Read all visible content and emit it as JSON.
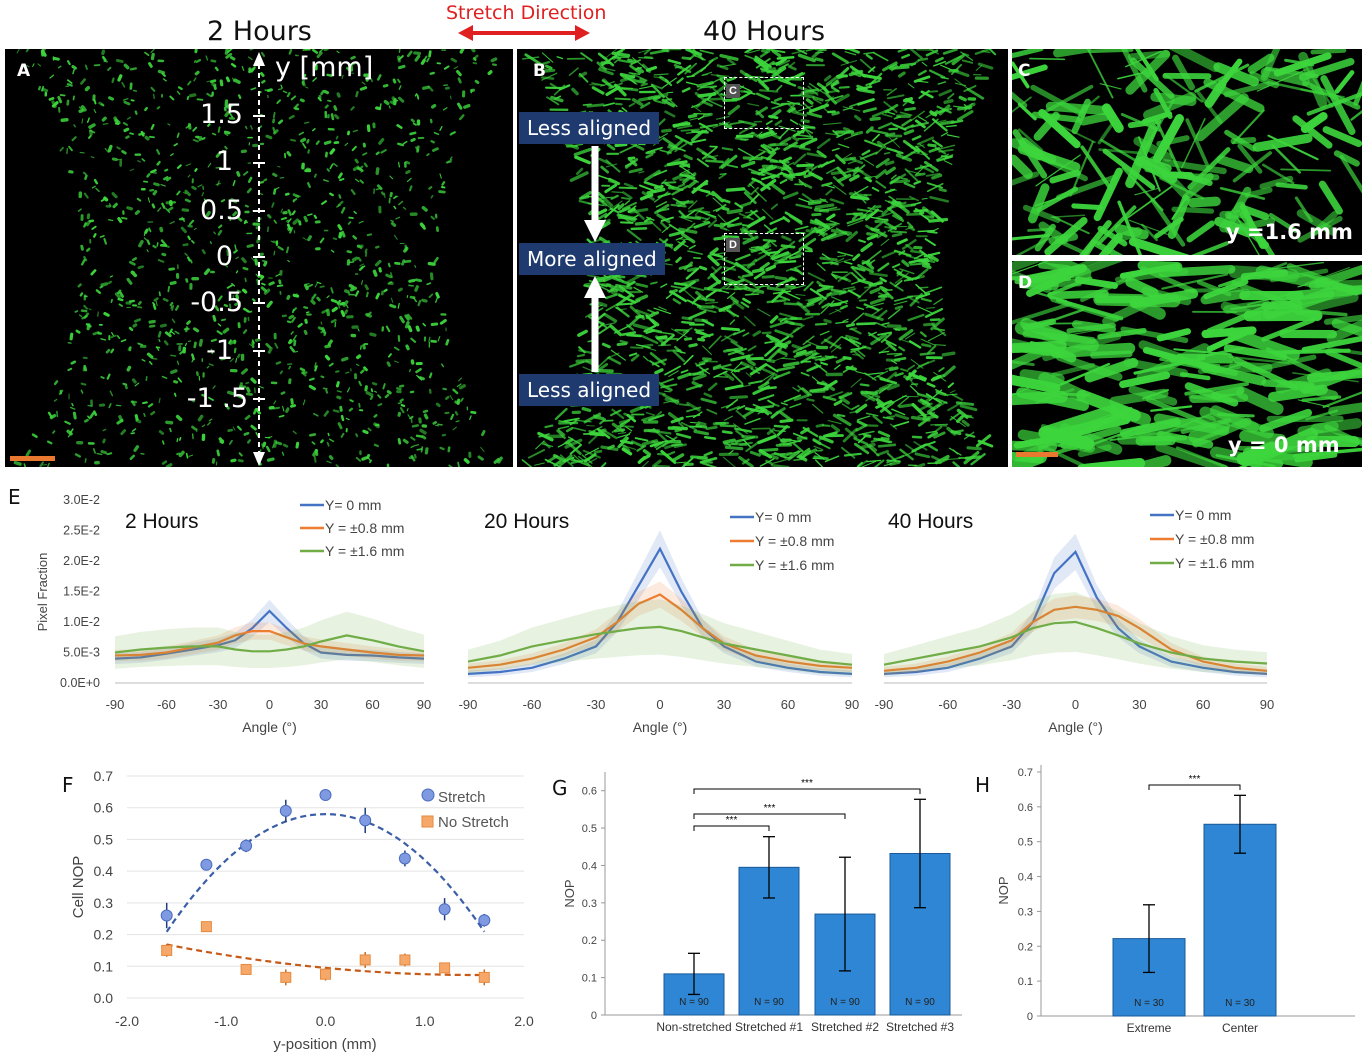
{
  "panel_a": {
    "letter": "A",
    "header": "2 Hours",
    "axis_label": "y [mm]",
    "ticks": [
      "1.5",
      "1",
      "0.5",
      "0",
      "-0.5",
      "-1",
      "-1 .5"
    ]
  },
  "stretch_direction": "Stretch Direction",
  "panel_b": {
    "letter": "B",
    "header": "40 Hours",
    "tags": [
      "Less aligned",
      "More aligned",
      "Less aligned"
    ],
    "box_c": "C",
    "box_d": "D"
  },
  "panel_c": {
    "letter": "C",
    "label": "y =1.6 mm"
  },
  "panel_d": {
    "letter": "D",
    "label": "y = 0 mm"
  },
  "colors": {
    "blue": "#4472c4",
    "orange": "#ed7d31",
    "green": "#70ad47",
    "bar": "#2e86d4",
    "cell_green": "#3dd63d",
    "scale_bar": "#e8792e",
    "tag_bg": "#1e3a6e",
    "arrow_red": "#e02020"
  },
  "chart_data": [
    {
      "id": "E-2h",
      "type": "line",
      "panel": "E",
      "title": "2 Hours",
      "xlabel": "Angle (°)",
      "ylabel": "Pixel Fraction",
      "xlim": [
        -90,
        90
      ],
      "ylim": [
        0,
        0.03
      ],
      "xticks": [
        "-90",
        "-60",
        "-30",
        "0",
        "30",
        "60",
        "90"
      ],
      "yticks": [
        "0.0E+0",
        "5.0E-3",
        "1.0E-2",
        "1.5E-2",
        "2.0E-2",
        "2.5E-2",
        "3.0E-2"
      ],
      "x": [
        -90,
        -75,
        -60,
        -45,
        -30,
        -20,
        -10,
        0,
        10,
        20,
        30,
        45,
        60,
        75,
        90
      ],
      "series": [
        {
          "name": "Y= 0 mm",
          "values": [
            0.004,
            0.0042,
            0.0048,
            0.0055,
            0.0062,
            0.007,
            0.009,
            0.0118,
            0.009,
            0.0065,
            0.005,
            0.0046,
            0.0045,
            0.0042,
            0.004
          ]
        },
        {
          "name": "Y = ±0.8 mm",
          "values": [
            0.0045,
            0.0046,
            0.005,
            0.0058,
            0.0066,
            0.0078,
            0.0085,
            0.0085,
            0.0075,
            0.0065,
            0.006,
            0.0055,
            0.005,
            0.0046,
            0.0045
          ]
        },
        {
          "name": "Y = ±1.6 mm",
          "values": [
            0.005,
            0.0055,
            0.0058,
            0.006,
            0.006,
            0.0055,
            0.0052,
            0.0052,
            0.0055,
            0.006,
            0.0068,
            0.0078,
            0.007,
            0.006,
            0.0052
          ]
        }
      ]
    },
    {
      "id": "E-20h",
      "type": "line",
      "panel": "E",
      "title": "20 Hours",
      "xlabel": "Angle (°)",
      "xlim": [
        -90,
        90
      ],
      "ylim": [
        0,
        0.03
      ],
      "xticks": [
        "-90",
        "-60",
        "-30",
        "0",
        "30",
        "60",
        "90"
      ],
      "x": [
        -90,
        -75,
        -60,
        -45,
        -30,
        -20,
        -10,
        0,
        10,
        20,
        30,
        45,
        60,
        75,
        90
      ],
      "series": [
        {
          "name": "Y= 0 mm",
          "values": [
            0.0015,
            0.0018,
            0.0025,
            0.004,
            0.006,
            0.01,
            0.016,
            0.022,
            0.015,
            0.009,
            0.006,
            0.0035,
            0.0025,
            0.0018,
            0.0015
          ]
        },
        {
          "name": "Y = ±0.8 mm",
          "values": [
            0.0025,
            0.003,
            0.004,
            0.0055,
            0.0075,
            0.01,
            0.013,
            0.0145,
            0.012,
            0.009,
            0.0065,
            0.0045,
            0.0035,
            0.0028,
            0.0025
          ]
        },
        {
          "name": "Y = ±1.6 mm",
          "values": [
            0.0035,
            0.0045,
            0.006,
            0.007,
            0.008,
            0.0085,
            0.009,
            0.0092,
            0.0085,
            0.0075,
            0.0065,
            0.0055,
            0.0045,
            0.0035,
            0.003
          ]
        }
      ]
    },
    {
      "id": "E-40h",
      "type": "line",
      "panel": "E",
      "title": "40 Hours",
      "xlabel": "Angle (°)",
      "xlim": [
        -90,
        90
      ],
      "ylim": [
        0,
        0.03
      ],
      "xticks": [
        "-90",
        "-60",
        "-30",
        "0",
        "30",
        "60",
        "90"
      ],
      "x": [
        -90,
        -75,
        -60,
        -45,
        -30,
        -20,
        -10,
        0,
        10,
        20,
        30,
        45,
        60,
        75,
        90
      ],
      "series": [
        {
          "name": "Y= 0 mm",
          "values": [
            0.0015,
            0.0018,
            0.0025,
            0.004,
            0.006,
            0.01,
            0.018,
            0.0215,
            0.014,
            0.009,
            0.006,
            0.0035,
            0.0025,
            0.0018,
            0.0015
          ]
        },
        {
          "name": "Y = ±0.8 mm",
          "values": [
            0.002,
            0.0025,
            0.0035,
            0.005,
            0.007,
            0.01,
            0.012,
            0.0125,
            0.012,
            0.011,
            0.009,
            0.0055,
            0.0035,
            0.0025,
            0.002
          ]
        },
        {
          "name": "Y = ±1.6 mm",
          "values": [
            0.003,
            0.004,
            0.005,
            0.006,
            0.0075,
            0.009,
            0.0098,
            0.01,
            0.009,
            0.0078,
            0.0065,
            0.005,
            0.004,
            0.0035,
            0.0032
          ]
        }
      ]
    },
    {
      "id": "F",
      "type": "scatter",
      "panel": "F",
      "xlabel": "y-position (mm)",
      "ylabel": "Cell NOP",
      "xlim": [
        -2.0,
        2.0
      ],
      "ylim": [
        0.0,
        0.7
      ],
      "xticks": [
        "-2.0",
        "-1.0",
        "0.0",
        "1.0",
        "2.0"
      ],
      "yticks": [
        "0.0",
        "0.1",
        "0.2",
        "0.3",
        "0.4",
        "0.5",
        "0.6",
        "0.7"
      ],
      "x": [
        -1.6,
        -1.2,
        -0.8,
        -0.4,
        0.0,
        0.4,
        0.8,
        1.2,
        1.6
      ],
      "series": [
        {
          "name": "Stretch",
          "values": [
            0.26,
            0.42,
            0.48,
            0.59,
            0.64,
            0.56,
            0.44,
            0.28,
            0.245
          ],
          "errors": [
            0.04,
            0.015,
            0.02,
            0.035,
            0.015,
            0.04,
            0.025,
            0.035,
            0.02
          ]
        },
        {
          "name": "No Stretch",
          "values": [
            0.15,
            0.225,
            0.09,
            0.065,
            0.075,
            0.12,
            0.12,
            0.095,
            0.065
          ],
          "errors": [
            0.02,
            0.01,
            0.01,
            0.025,
            0.02,
            0.025,
            0.02,
            0.015,
            0.025
          ]
        }
      ]
    },
    {
      "id": "G",
      "type": "bar",
      "panel": "G",
      "ylabel": "NOP",
      "ylim": [
        0,
        0.65
      ],
      "yticks": [
        "0",
        "0.1",
        "0.2",
        "0.3",
        "0.4",
        "0.5",
        "0.6"
      ],
      "categories": [
        "Non-stretched",
        "Stretched #1",
        "Stretched #2",
        "Stretched #3"
      ],
      "values": [
        0.11,
        0.395,
        0.27,
        0.432
      ],
      "errors": [
        0.055,
        0.082,
        0.152,
        0.145
      ],
      "n_labels": [
        "N = 90",
        "N = 90",
        "N = 90",
        "N = 90"
      ],
      "significance": [
        "***",
        "***",
        "***"
      ]
    },
    {
      "id": "H",
      "type": "bar",
      "panel": "H",
      "ylabel": "NOP",
      "ylim": [
        0,
        0.72
      ],
      "yticks": [
        "0",
        "0.1",
        "0.2",
        "0.3",
        "0.4",
        "0.5",
        "0.6",
        "0.7"
      ],
      "categories": [
        "Extreme",
        "Center"
      ],
      "values": [
        0.222,
        0.55
      ],
      "errors": [
        0.097,
        0.083
      ],
      "n_labels": [
        "N = 30",
        "N = 30"
      ],
      "significance": [
        "***"
      ]
    }
  ]
}
